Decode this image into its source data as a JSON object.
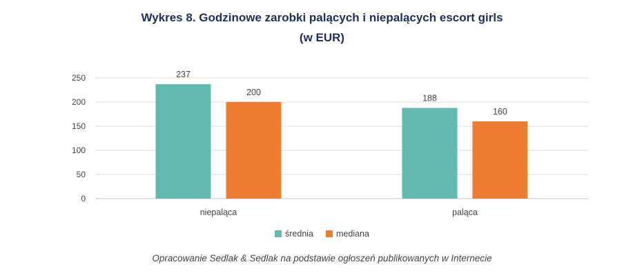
{
  "chart_data": {
    "type": "bar",
    "title_line1": "Wykres 8. Godzinowe zarobki palących i niepalących escort girls",
    "title_line2": "(w EUR)",
    "categories": [
      "niepaląca",
      "paląca"
    ],
    "series": [
      {
        "name": "średnia",
        "color": "#62b9b0",
        "values": [
          237,
          188
        ]
      },
      {
        "name": "mediana",
        "color": "#ed7d31",
        "values": [
          200,
          160
        ]
      }
    ],
    "yticks": [
      0,
      50,
      100,
      150,
      200,
      250
    ],
    "ylim": [
      0,
      250
    ],
    "grid": true,
    "legend_position": "bottom"
  },
  "source": "Opracowanie Sedlak & Sedlak na podstawie ogłoszeń publikowanych w Internecie"
}
